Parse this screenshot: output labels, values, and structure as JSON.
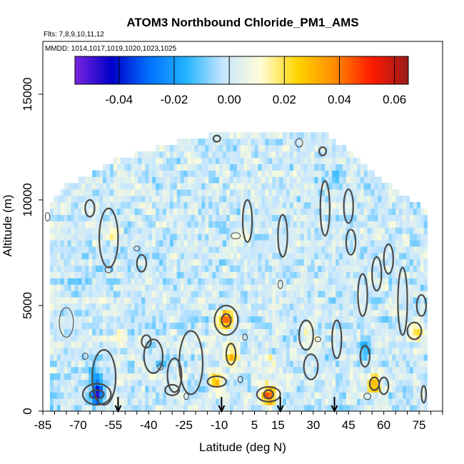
{
  "chart_data": {
    "type": "heatmap",
    "title": "ATOM3 Northbound Chloride_PM1_AMS",
    "flights_note": "Flts: 7,8,9,10,11,12",
    "dates_note": "MMDD: 1014,1017,1019,1020,1023,1025",
    "xlabel": "Latitude (deg N)",
    "ylabel": "Altitude (m)",
    "xlim": [
      -85,
      85
    ],
    "ylim": [
      0,
      17500
    ],
    "x_tick_labels": [
      "-85",
      "-70",
      "-55",
      "-40",
      "-25",
      "-10",
      "5",
      "15",
      "30",
      "45",
      "60",
      "75"
    ],
    "y_tick_labels": [
      "0",
      "5000",
      "10000",
      "15000"
    ],
    "colorbar": {
      "range": [
        -0.056,
        0.065
      ],
      "tick_labels": [
        "-0.04",
        "-0.02",
        "0.00",
        "0.02",
        "0.04",
        "0.06"
      ],
      "colors": [
        "#7a24e0",
        "#0000c8",
        "#0070ff",
        "#22b4ff",
        "#c6e6ff",
        "#fffdd8",
        "#ffd400",
        "#ff8c00",
        "#ff1a00",
        "#9a1b1b"
      ]
    },
    "grid": false,
    "coverage_top": [
      {
        "lat": -82,
        "alt": 9700
      },
      {
        "lat": -75,
        "alt": 10600
      },
      {
        "lat": -65,
        "alt": 11000
      },
      {
        "lat": -55,
        "alt": 11700
      },
      {
        "lat": -40,
        "alt": 12200
      },
      {
        "lat": -25,
        "alt": 12700
      },
      {
        "lat": -10,
        "alt": 13000
      },
      {
        "lat": 5,
        "alt": 13000
      },
      {
        "lat": 20,
        "alt": 13000
      },
      {
        "lat": 35,
        "alt": 13000
      },
      {
        "lat": 45,
        "alt": 12200
      },
      {
        "lat": 55,
        "alt": 11200
      },
      {
        "lat": 65,
        "alt": 10300
      },
      {
        "lat": 75,
        "alt": 9600
      },
      {
        "lat": 78,
        "alt": 9400
      }
    ],
    "features": [
      {
        "lat": -62,
        "alt": 800,
        "value": -0.05
      },
      {
        "lat": -63,
        "alt": 1800,
        "value": -0.022
      },
      {
        "lat": -7,
        "alt": 4300,
        "value": 0.05
      },
      {
        "lat": -11,
        "alt": 1400,
        "value": 0.03
      },
      {
        "lat": -5,
        "alt": 2700,
        "value": 0.025
      },
      {
        "lat": 11,
        "alt": 800,
        "value": 0.045
      },
      {
        "lat": 56,
        "alt": 1300,
        "value": 0.035
      },
      {
        "lat": 52,
        "alt": 2900,
        "value": -0.02
      },
      {
        "lat": 74,
        "alt": 3800,
        "value": 0.022
      },
      {
        "lat": -56,
        "alt": 8500,
        "value": 0.012
      },
      {
        "lat": 28,
        "alt": 3500,
        "value": 0.012
      },
      {
        "lat": -33,
        "alt": 2200,
        "value": -0.01
      },
      {
        "lat": 12,
        "alt": 2300,
        "value": 0.01
      },
      {
        "lat": -52,
        "alt": 3600,
        "value": 0.014
      },
      {
        "lat": 40,
        "alt": 11000,
        "value": -0.008
      },
      {
        "lat": -70,
        "alt": 6000,
        "value": -0.008
      }
    ],
    "arrows_lat": [
      -53,
      -9,
      16,
      39
    ],
    "contours": [
      {
        "lat": -75,
        "alt": 4200,
        "rx": 3,
        "ry": 700,
        "value": -0.002
      },
      {
        "lat": -62,
        "alt": 800,
        "rx": 6,
        "ry": 500,
        "value": -0.03
      },
      {
        "lat": -62,
        "alt": 800,
        "rx": 3,
        "ry": 200,
        "value": -0.05
      },
      {
        "lat": -59,
        "alt": 1600,
        "rx": 5,
        "ry": 1300,
        "value": -0.01
      },
      {
        "lat": -38,
        "alt": 2600,
        "rx": 4,
        "ry": 800,
        "value": -0.008
      },
      {
        "lat": -29,
        "alt": 1700,
        "rx": 3,
        "ry": 800,
        "value": -0.008
      },
      {
        "lat": -22,
        "alt": 2300,
        "rx": 5,
        "ry": 1500,
        "value": 0.006
      },
      {
        "lat": -7,
        "alt": 4300,
        "rx": 5,
        "ry": 700,
        "value": 0.03
      },
      {
        "lat": -7,
        "alt": 4300,
        "rx": 2,
        "ry": 300,
        "value": 0.05
      },
      {
        "lat": -5,
        "alt": 2700,
        "rx": 2,
        "ry": 500,
        "value": 0.02
      },
      {
        "lat": -11,
        "alt": 1400,
        "rx": 4,
        "ry": 250,
        "value": 0.02
      },
      {
        "lat": 11,
        "alt": 800,
        "rx": 5,
        "ry": 350,
        "value": 0.03
      },
      {
        "lat": 11,
        "alt": 800,
        "rx": 2,
        "ry": 200,
        "value": 0.045
      },
      {
        "lat": 56,
        "alt": 1300,
        "rx": 2,
        "ry": 300,
        "value": 0.03
      },
      {
        "lat": 52,
        "alt": 2600,
        "rx": 2,
        "ry": 500,
        "value": -0.01
      },
      {
        "lat": 73,
        "alt": 3800,
        "rx": 3,
        "ry": 400,
        "value": 0.015
      },
      {
        "lat": -57,
        "alt": 8200,
        "rx": 4,
        "ry": 1400,
        "value": 0.006
      },
      {
        "lat": -43,
        "alt": 7000,
        "rx": 2,
        "ry": 400,
        "value": 0.005
      },
      {
        "lat": 2,
        "alt": 9000,
        "rx": 2,
        "ry": 1000,
        "value": 0.006
      },
      {
        "lat": 17,
        "alt": 8300,
        "rx": 2,
        "ry": 1000,
        "value": 0.006
      },
      {
        "lat": 35,
        "alt": 9600,
        "rx": 2,
        "ry": 1300,
        "value": 0.006
      },
      {
        "lat": 45,
        "alt": 9700,
        "rx": 2,
        "ry": 800,
        "value": 0.006
      },
      {
        "lat": 68,
        "alt": 5200,
        "rx": 2,
        "ry": 1600,
        "value": 0.006
      },
      {
        "lat": 62,
        "alt": 7200,
        "rx": 2,
        "ry": 700,
        "value": 0.006
      },
      {
        "lat": 46,
        "alt": 8000,
        "rx": 2,
        "ry": 600,
        "value": 0.006
      },
      {
        "lat": -65,
        "alt": 9600,
        "rx": 2,
        "ry": 400,
        "value": 0.006
      },
      {
        "lat": -41,
        "alt": 3300,
        "rx": 2,
        "ry": 300,
        "value": 0.006
      },
      {
        "lat": 27,
        "alt": 3600,
        "rx": 3,
        "ry": 700,
        "value": 0.008
      },
      {
        "lat": 29,
        "alt": 2100,
        "rx": 3,
        "ry": 600,
        "value": 0.006
      },
      {
        "lat": 40,
        "alt": 3400,
        "rx": 2,
        "ry": 900,
        "value": 0.006
      },
      {
        "lat": 51,
        "alt": 5500,
        "rx": 2,
        "ry": 1000,
        "value": 0.006
      },
      {
        "lat": 57,
        "alt": 6500,
        "rx": 2,
        "ry": 800,
        "value": 0.006
      },
      {
        "lat": 60,
        "alt": 1200,
        "rx": 2,
        "ry": 400,
        "value": 0.006
      },
      {
        "lat": 77,
        "alt": 800,
        "rx": 1,
        "ry": 400,
        "value": 0.006
      },
      {
        "lat": 76,
        "alt": 5000,
        "rx": 2,
        "ry": 500,
        "value": 0.006
      },
      {
        "lat": -30,
        "alt": 1000,
        "rx": 3,
        "ry": 250,
        "value": 0.006
      },
      {
        "lat": -11,
        "alt": 12900,
        "rx": 1.5,
        "ry": 150,
        "value": 0.006
      },
      {
        "lat": 24,
        "alt": 12700,
        "rx": 1.5,
        "ry": 200,
        "value": -0.004
      },
      {
        "lat": 34,
        "alt": 12300,
        "rx": 1.5,
        "ry": 200,
        "value": 0.006
      },
      {
        "lat": -83,
        "alt": 9200,
        "rx": 1,
        "ry": 200,
        "value": -0.004
      },
      {
        "lat": -3,
        "alt": 8300,
        "rx": 2,
        "ry": 150,
        "value": -0.004
      },
      {
        "lat": 16,
        "alt": 6000,
        "rx": 1,
        "ry": 200,
        "value": -0.004
      },
      {
        "lat": -57,
        "alt": 6700,
        "rx": 1.5,
        "ry": 150,
        "value": -0.004
      },
      {
        "lat": 1,
        "alt": 3500,
        "rx": 1,
        "ry": 150,
        "value": -0.004
      },
      {
        "lat": -1,
        "alt": 1500,
        "rx": 1,
        "ry": 150,
        "value": -0.004
      },
      {
        "lat": 32,
        "alt": 3400,
        "rx": 1.2,
        "ry": 120,
        "value": -0.004
      },
      {
        "lat": -67,
        "alt": 2600,
        "rx": 1.2,
        "ry": 150,
        "value": -0.004
      },
      {
        "lat": -35,
        "alt": 2100,
        "rx": 1.2,
        "ry": 150,
        "value": -0.004
      },
      {
        "lat": -24,
        "alt": 700,
        "rx": 1,
        "ry": 150,
        "value": -0.004
      },
      {
        "lat": 53,
        "alt": 700,
        "rx": 1.5,
        "ry": 150,
        "value": -0.004
      },
      {
        "lat": -45,
        "alt": 7700,
        "rx": 1.2,
        "ry": 120,
        "value": -0.004
      }
    ]
  }
}
